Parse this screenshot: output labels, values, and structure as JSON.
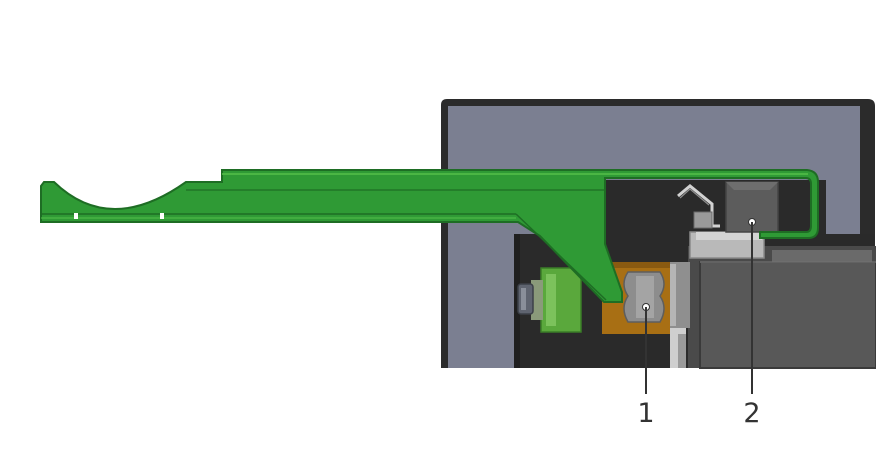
{
  "callouts": [
    {
      "label": "1",
      "part": "roller"
    },
    {
      "label": "2",
      "part": "upper-block"
    }
  ],
  "colors": {
    "background": "#ffffff",
    "housing_frame": "#2b2b2b",
    "housing_panel": "#7b7f91",
    "interior": "#2a2a2a",
    "arm_green": "#2f9a35",
    "arm_green_dark": "#1e6d24",
    "arm_green_light": "#55c04a",
    "bronze": "#a86f14",
    "knob_green": "#5aa83c",
    "steel_gray": "#8f8f8f",
    "steel_light": "#c8c8c8",
    "block_dark": "#5c5c5c",
    "accent_red": "#d01010",
    "leader_line": "#333333"
  }
}
